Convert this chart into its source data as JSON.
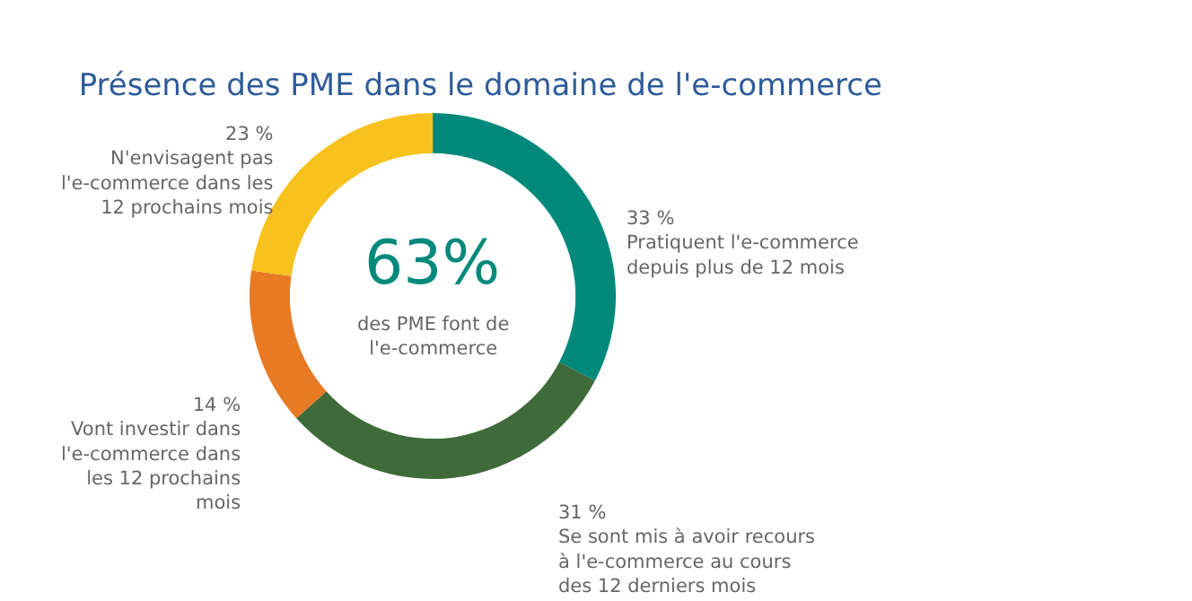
{
  "chart_data": {
    "type": "donut",
    "title": "Présence des PME dans le domaine de l'e-commerce",
    "categories": [
      "Pratiquent l'e-commerce\ndepuis plus de 12 mois",
      "Se sont mis à avoir recours\nà l'e-commerce au cours\ndes 12 derniers mois",
      "Vont investir dans\nl'e-commerce dans\nles 12 prochains\nmois",
      "N'envisagent pas\nl'e-commerce dans les\n12 prochains mois"
    ],
    "values": [
      33,
      31,
      14,
      23
    ],
    "value_labels": [
      "33 %",
      "31 %",
      "14 %",
      "23 %"
    ],
    "colors": [
      "#00897b",
      "#3f6b3a",
      "#e87a24",
      "#f7c21e"
    ],
    "annotations": [
      "63%",
      "des PME font de\nl'e-commerce"
    ],
    "legend": false
  }
}
